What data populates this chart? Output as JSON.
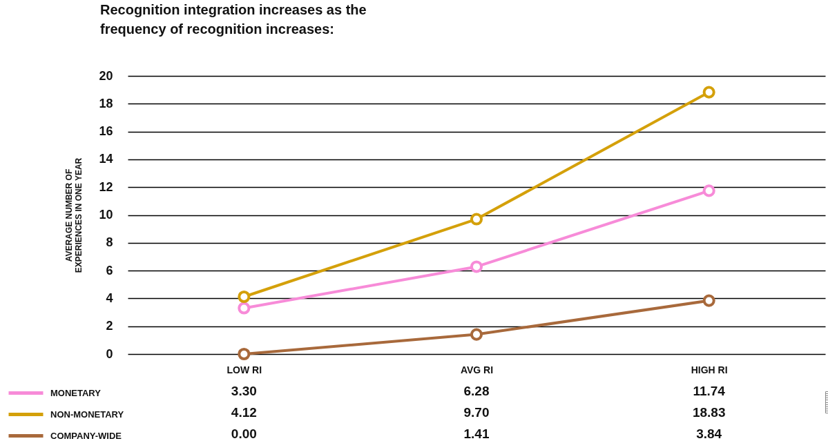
{
  "chart_data": {
    "type": "line",
    "title": "Recognition integration increases as the frequency of recognition increases:",
    "ylabel": "AVERAGE NUMBER OF EXPERIENCES IN ONE YEAR",
    "categories": [
      "LOW RI",
      "AVG RI",
      "HIGH RI"
    ],
    "ylim": [
      0,
      20
    ],
    "yticks": [
      0,
      2,
      4,
      6,
      8,
      10,
      12,
      14,
      16,
      18,
      20
    ],
    "grid": "y",
    "marker": "circle",
    "legend": "bottom left",
    "series": [
      {
        "name": "MONETARY",
        "color": "#f78bd8",
        "values": [
          3.3,
          6.28,
          11.74
        ],
        "value_labels": [
          "3.30",
          "6.28",
          "11.74"
        ]
      },
      {
        "name": "NON-MONETARY",
        "color": "#d4a00a",
        "values": [
          4.12,
          9.7,
          18.83
        ],
        "value_labels": [
          "4.12",
          "9.70",
          "18.83"
        ]
      },
      {
        "name": "COMPANY-WIDE",
        "color": "#a8693b",
        "values": [
          0.0,
          1.41,
          3.84
        ],
        "value_labels": [
          "0.00",
          "1.41",
          "3.84"
        ]
      }
    ]
  }
}
